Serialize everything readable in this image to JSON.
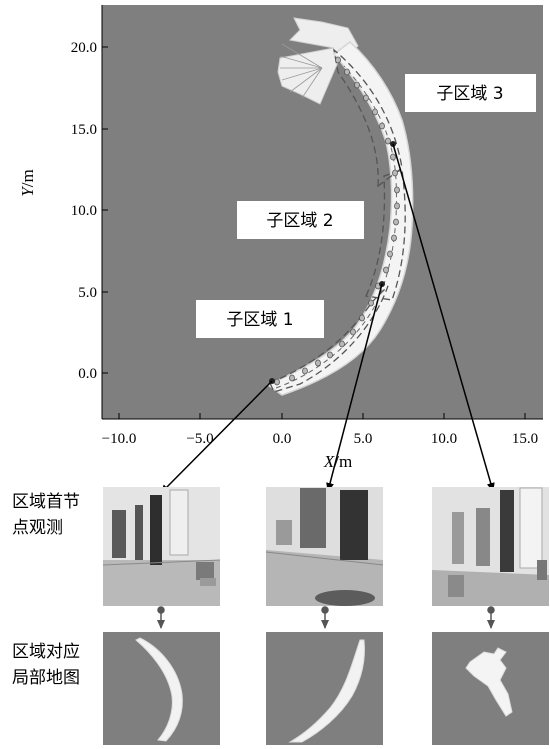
{
  "axes": {
    "x_title_italic": "X",
    "x_title_unit": "/m",
    "y_title_italic": "Y",
    "y_title_unit": "/m",
    "x_ticks": [
      "−10.0",
      "−5.0",
      "0.0",
      "5.0",
      "10.0",
      "15.0"
    ],
    "y_ticks": [
      "0.0",
      "5.0",
      "10.0",
      "15.0",
      "20.0"
    ]
  },
  "regions": [
    {
      "label": "子区域 1"
    },
    {
      "label": "子区域 2"
    },
    {
      "label": "子区域 3"
    }
  ],
  "rows": {
    "observation_label_line1": "区域首节",
    "observation_label_line2": "点观测",
    "local_map_label_line1": "区域对应",
    "local_map_label_line2": "局部地图"
  },
  "colors": {
    "plot_background": "#7f7f7f",
    "map_fill": "#f4f4f4",
    "arrow": "#000000",
    "down_arrow": "#555555"
  }
}
